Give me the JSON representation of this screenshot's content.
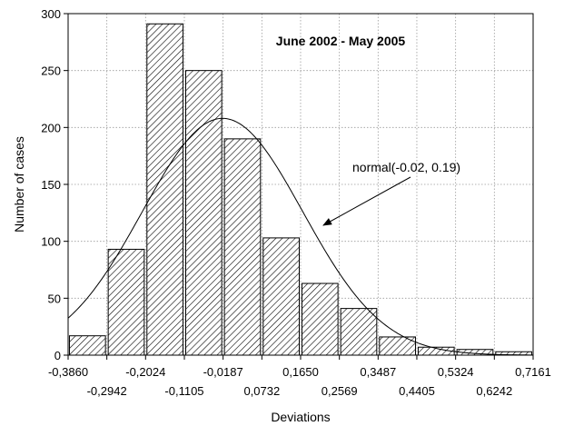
{
  "chart_data": {
    "type": "bar",
    "title": "June 2002 - May 2005",
    "xlabel": "Deviations",
    "ylabel": "Number of cases",
    "ylim": [
      0,
      300
    ],
    "y_ticks": [
      "0",
      "50",
      "100",
      "150",
      "200",
      "250",
      "300"
    ],
    "x_ticks_upper": [
      "-0,3860",
      "-0,2024",
      "-0,0187",
      "0,1650",
      "0,3487",
      "0,5324",
      "0,7161"
    ],
    "x_ticks_lower": [
      "-0,2942",
      "-0,1105",
      "0,0732",
      "0,2569",
      "0,4405",
      "0,6242"
    ],
    "xlim": [
      -0.386,
      0.7161
    ],
    "grid": true,
    "bin_width": 0.09184,
    "bins": [
      {
        "center": -0.3401,
        "value": 17
      },
      {
        "center": -0.2483,
        "value": 93
      },
      {
        "center": -0.1565,
        "value": 291
      },
      {
        "center": -0.0646,
        "value": 250
      },
      {
        "center": 0.0272,
        "value": 190
      },
      {
        "center": 0.1191,
        "value": 103
      },
      {
        "center": 0.2109,
        "value": 63
      },
      {
        "center": 0.3028,
        "value": 41
      },
      {
        "center": 0.3946,
        "value": 16
      },
      {
        "center": 0.4864,
        "value": 7
      },
      {
        "center": 0.5783,
        "value": 5
      },
      {
        "center": 0.6701,
        "value": 3
      }
    ],
    "fit_curve": {
      "label": "normal(-0.02,  0.19)",
      "mean": -0.02,
      "sd": 0.19,
      "scale": 208
    }
  }
}
